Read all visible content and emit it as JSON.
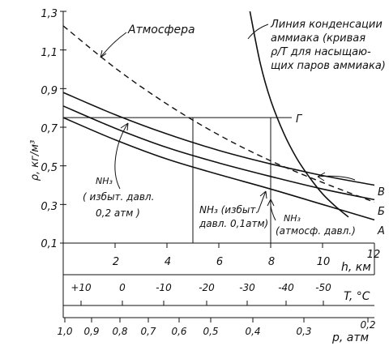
{
  "chart_data": {
    "type": "line",
    "ylabel": "ρ, кг/м³",
    "yticks": [
      "0,1",
      "0,3",
      "0,5",
      "0,7",
      "0,9",
      "1,1",
      "1,3"
    ],
    "ylim": [
      0.1,
      1.3
    ],
    "h_axis": {
      "label": "h, км",
      "ticks": [
        "2",
        "4",
        "6",
        "8",
        "10",
        "12"
      ],
      "range": [
        0,
        12
      ]
    },
    "T_axis": {
      "label": "T, °C",
      "ticks": [
        "+10",
        "0",
        "-10",
        "-20",
        "-30",
        "-40",
        "-50"
      ]
    },
    "p_axis": {
      "label": "p, атм",
      "ticks": [
        "1,0",
        "0,9",
        "0,8",
        "0,7",
        "0,6",
        "0,5",
        "0,4",
        "0,3",
        "0,2"
      ]
    },
    "series": [
      {
        "name": "Атмосфера",
        "style": "dashed",
        "x": [
          0,
          2,
          4,
          6,
          8,
          10,
          12
        ],
        "y": [
          1.225,
          1.007,
          0.82,
          0.66,
          0.526,
          0.414,
          0.312
        ]
      },
      {
        "name": "В",
        "label": "NH₃ (избыт. давл. 0,2 атм)",
        "x": [
          0,
          2,
          4,
          6,
          8,
          10,
          12
        ],
        "y": [
          0.88,
          0.765,
          0.665,
          0.58,
          0.51,
          0.45,
          0.4
        ]
      },
      {
        "name": "Б",
        "label": "NH₃ (избыт. давл. 0,1атм)",
        "x": [
          0,
          2,
          4,
          6,
          8,
          10,
          12
        ],
        "y": [
          0.81,
          0.695,
          0.595,
          0.515,
          0.445,
          0.38,
          0.325
        ]
      },
      {
        "name": "А",
        "label": "NH₃ (атмосф. давл.)",
        "x": [
          0,
          2,
          4,
          6,
          8,
          10,
          12
        ],
        "y": [
          0.75,
          0.635,
          0.535,
          0.455,
          0.38,
          0.3,
          0.22
        ]
      },
      {
        "name": "Линия конденсации аммиака (кривая ρ/T для насыщающих паров аммиака)",
        "x": [
          7.2,
          7.6,
          8.0,
          8.5,
          9.0,
          9.5,
          10.0,
          10.5,
          11.0
        ],
        "y": [
          1.3,
          1.03,
          0.84,
          0.67,
          0.54,
          0.44,
          0.355,
          0.29,
          0.235
        ]
      }
    ],
    "annotations": {
      "atm": "Атмосфера",
      "cond": [
        "Линия конденсации",
        "аммиака (кривая",
        "ρ/T для насыщаю-",
        "щих паров аммиака)"
      ],
      "nh3_02": [
        "NH₃",
        "( избыт. давл.",
        "0,2 атм )"
      ],
      "nh3_01": [
        "NH₃ (избыт.",
        "давл. 0,1атм)"
      ],
      "nh3_atm": [
        "NH₃",
        "(атмосф. давл.)"
      ],
      "G": "Г",
      "B": "В",
      "Bb": "Б",
      "A": "А"
    },
    "guide": {
      "rho": 0.75,
      "h": [
        5,
        8
      ]
    }
  }
}
